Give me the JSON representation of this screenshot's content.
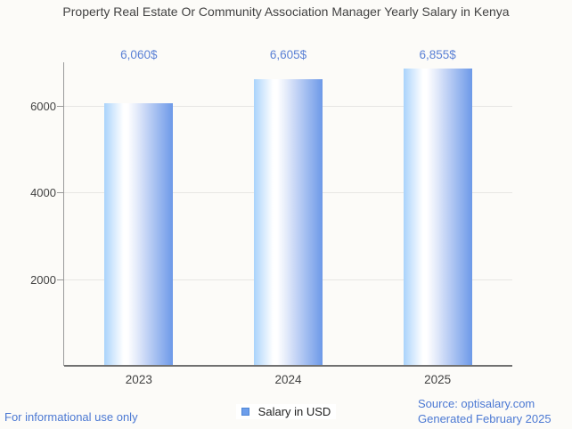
{
  "chart_data": {
    "type": "bar",
    "title": "Property Real Estate Or Community Association Manager Yearly Salary in Kenya",
    "categories": [
      "2023",
      "2024",
      "2025"
    ],
    "series": [
      {
        "name": "Salary in USD",
        "values": [
          6060,
          6605,
          6855
        ],
        "value_labels": [
          "6,060$",
          "6,605$",
          "6,855$"
        ]
      }
    ],
    "xlabel": "",
    "ylabel": "",
    "ylim": [
      0,
      7000
    ],
    "yticks": [
      2000,
      4000,
      6000
    ],
    "grid": true,
    "legend_position": "bottom",
    "colors": {
      "bar_gradient_left": "#a9d3fb",
      "bar_gradient_mid": "#ffffff",
      "bar_gradient_right": "#6d99e8",
      "annotation_text": "#5b81d5",
      "axis_text": "#424242",
      "legend_marker": "#6d9eeb"
    }
  },
  "footer": {
    "disclaimer": "For informational use only",
    "source": "Source: optisalary.com",
    "generated": "Generated February 2025"
  }
}
